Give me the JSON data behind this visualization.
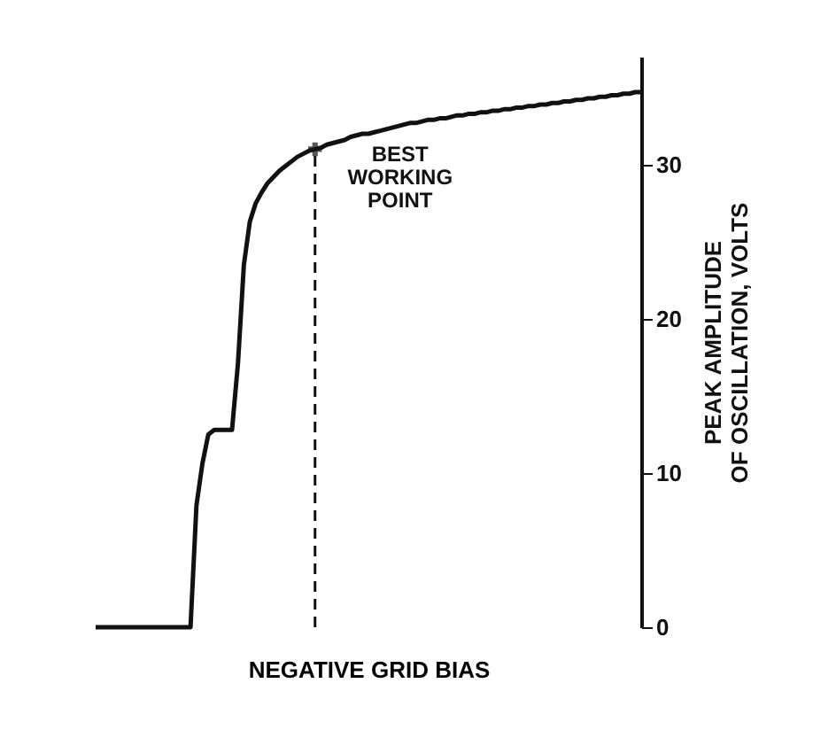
{
  "chart_data": {
    "type": "line",
    "xlabel": "NEGATIVE GRID BIAS",
    "ylabel": "PEAK AMPLITUDE OF OSCILLATION, VOLTS",
    "categories": [
      null,
      null,
      null,
      null,
      null,
      null,
      null,
      null,
      null,
      null,
      null,
      null,
      null,
      null,
      null,
      null,
      null,
      null,
      null,
      null,
      null,
      null,
      null,
      null,
      null,
      null,
      null,
      null,
      null,
      null,
      null,
      null,
      null,
      null,
      null,
      null,
      null,
      null,
      null,
      null,
      null,
      null,
      null,
      null,
      null,
      null,
      null,
      null,
      null,
      null,
      null,
      null,
      null,
      null,
      null,
      null,
      null,
      null,
      null,
      null,
      null,
      null,
      null,
      null,
      null,
      null,
      null,
      null,
      null,
      null,
      null,
      null,
      null,
      null,
      null,
      null,
      null,
      null,
      null,
      null,
      null,
      null,
      null,
      null,
      null,
      null,
      null,
      null,
      null,
      null,
      null,
      null,
      null
    ],
    "series": [
      {
        "color": "#111111",
        "values": [
          0,
          0,
          0,
          0,
          0,
          0,
          0,
          0,
          0,
          0,
          0,
          0,
          0,
          0,
          0,
          0,
          0,
          7.9,
          10.6,
          12.5,
          12.8,
          12.8,
          12.8,
          12.8,
          17.1,
          23.5,
          26.3,
          27.5,
          28.2,
          28.8,
          29.2,
          29.6,
          29.9,
          30.2,
          30.5,
          30.7,
          30.9,
          31.0,
          31.1,
          31.3,
          31.4,
          31.5,
          31.6,
          31.8,
          31.9,
          32.0,
          32.0,
          32.1,
          32.2,
          32.3,
          32.4,
          32.5,
          32.6,
          32.7,
          32.7,
          32.8,
          32.9,
          32.9,
          33.0,
          33.0,
          33.1,
          33.2,
          33.2,
          33.3,
          33.3,
          33.4,
          33.4,
          33.5,
          33.5,
          33.6,
          33.6,
          33.7,
          33.7,
          33.8,
          33.8,
          33.9,
          33.9,
          34.0,
          34.0,
          34.1,
          34.1,
          34.2,
          34.2,
          34.3,
          34.3,
          34.4,
          34.4,
          34.5,
          34.5,
          34.6,
          34.6,
          34.7,
          34.7
        ]
      }
    ],
    "ylim": [
      0,
      37
    ],
    "yticks": [
      0,
      10,
      20,
      30
    ],
    "tick_labels": "y",
    "grid": false,
    "marker": "none",
    "line_style": "solid",
    "annotations": [
      "BEST WORKING POINT"
    ]
  }
}
